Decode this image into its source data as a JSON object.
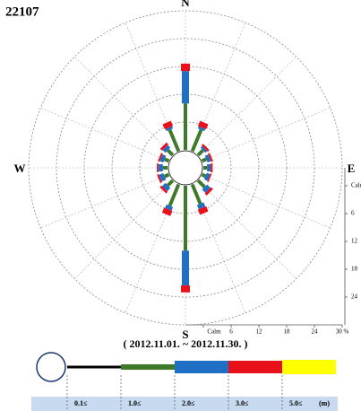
{
  "chart_data": {
    "type": "rose",
    "title": "22107",
    "subtitle": "( 2012.11.01. ~ 2012.11.30. )",
    "categories": [
      "N",
      null,
      null,
      null,
      "E",
      null,
      null,
      null,
      "S",
      null,
      null,
      null,
      "W",
      null,
      null,
      null
    ],
    "rlim": [
      0,
      30
    ],
    "rticks": [
      {
        "value": 0,
        "label": "Calm"
      },
      6,
      12,
      18,
      24,
      {
        "value": 30,
        "label": "30 %"
      }
    ],
    "legend_unit": "(m)",
    "series": [
      {
        "name": "0.1≤",
        "color": "#000000",
        "values": [
          0,
          0,
          0,
          0,
          0,
          0,
          0,
          0,
          0,
          0,
          0,
          0,
          0,
          0,
          0,
          0
        ]
      },
      {
        "name": "1.0≤",
        "color": "#3f7a2a",
        "values": [
          10,
          5,
          1.5,
          1,
          0.8,
          0.8,
          2,
          4.5,
          14,
          5,
          1.5,
          1,
          1,
          1,
          1.5,
          5
        ]
      },
      {
        "name": "2.0≤",
        "color": "#1f6fc4",
        "values": [
          7,
          0.5,
          0.5,
          0.8,
          0.8,
          0.8,
          1,
          1,
          7.5,
          0.8,
          1,
          1,
          1,
          0.8,
          0.8,
          0.5
        ]
      },
      {
        "name": "3.0≤",
        "color": "#e8101a",
        "values": [
          1.6,
          1.2,
          0.5,
          0.4,
          0.4,
          0.3,
          0.6,
          1.2,
          1.5,
          1.2,
          0.5,
          0.4,
          0.3,
          0.4,
          0.6,
          1.2
        ]
      },
      {
        "name": "5.0≤",
        "color": "#ffff00",
        "values": [
          0,
          0,
          0,
          0,
          0,
          0,
          0,
          0,
          0,
          0,
          0,
          0,
          0,
          0,
          0,
          0
        ]
      }
    ]
  }
}
